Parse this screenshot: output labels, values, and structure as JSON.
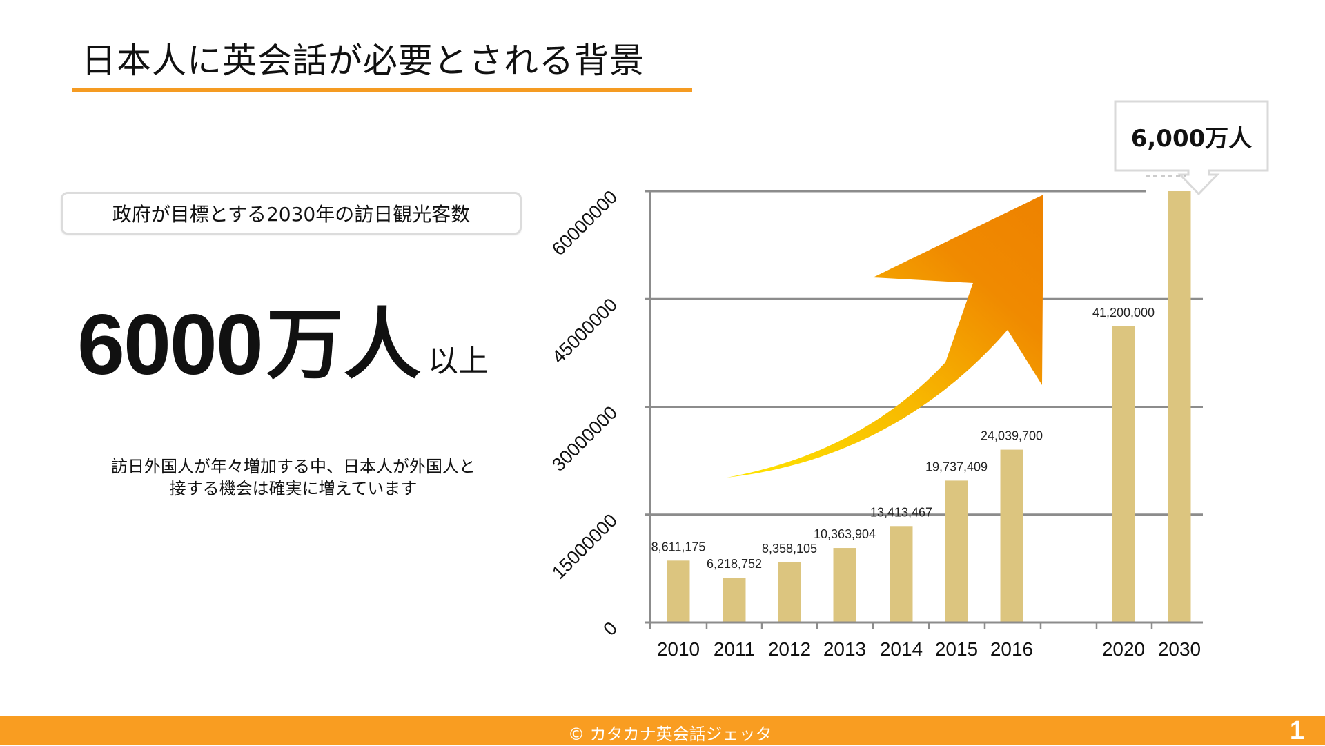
{
  "slide": {
    "title": "日本人に英会話が必要とされる背景",
    "accent_color": "#F59B22",
    "label_box": "政府が目標とする2030年の訪日観光客数",
    "big_number": {
      "value": "6000",
      "unit": "万人",
      "suffix": "以上"
    },
    "description_lines": [
      "訪日外国人が年々増加する中、日本人が外国人と",
      "接する機会は確実に増えています"
    ],
    "callout": "6,000万人",
    "footer": {
      "copyright": "© カタカナ英会話ジェッタ",
      "page_number": "1",
      "color": "#F99D21"
    }
  },
  "chart_data": {
    "type": "bar",
    "title": "",
    "xlabel": "",
    "ylabel": "",
    "categories": [
      "2010",
      "2011",
      "2012",
      "2013",
      "2014",
      "2015",
      "2016",
      "2020",
      "2030"
    ],
    "values": [
      8611175,
      6218752,
      8358105,
      10363904,
      13413467,
      19737409,
      24039700,
      41200000,
      60000000
    ],
    "data_labels": [
      "8,611,175",
      "6,218,752",
      "8,358,105",
      "10,363,904",
      "13,413,467",
      "19,737,409",
      "24,039,700",
      "41,200,000",
      ""
    ],
    "yticks": [
      0,
      15000000,
      30000000,
      45000000,
      60000000
    ],
    "ytick_labels": [
      "0",
      "15000000",
      "30000000",
      "45000000",
      "60000000"
    ],
    "ylim": [
      0,
      60000000
    ],
    "grid": true,
    "legend": null,
    "bar_color": "#DCC57F",
    "annotations": [
      {
        "text": "6,000万人",
        "target": "2030",
        "type": "callout"
      },
      {
        "type": "trend-arrow",
        "description": "yellow-to-orange upward curved arrow"
      }
    ]
  }
}
